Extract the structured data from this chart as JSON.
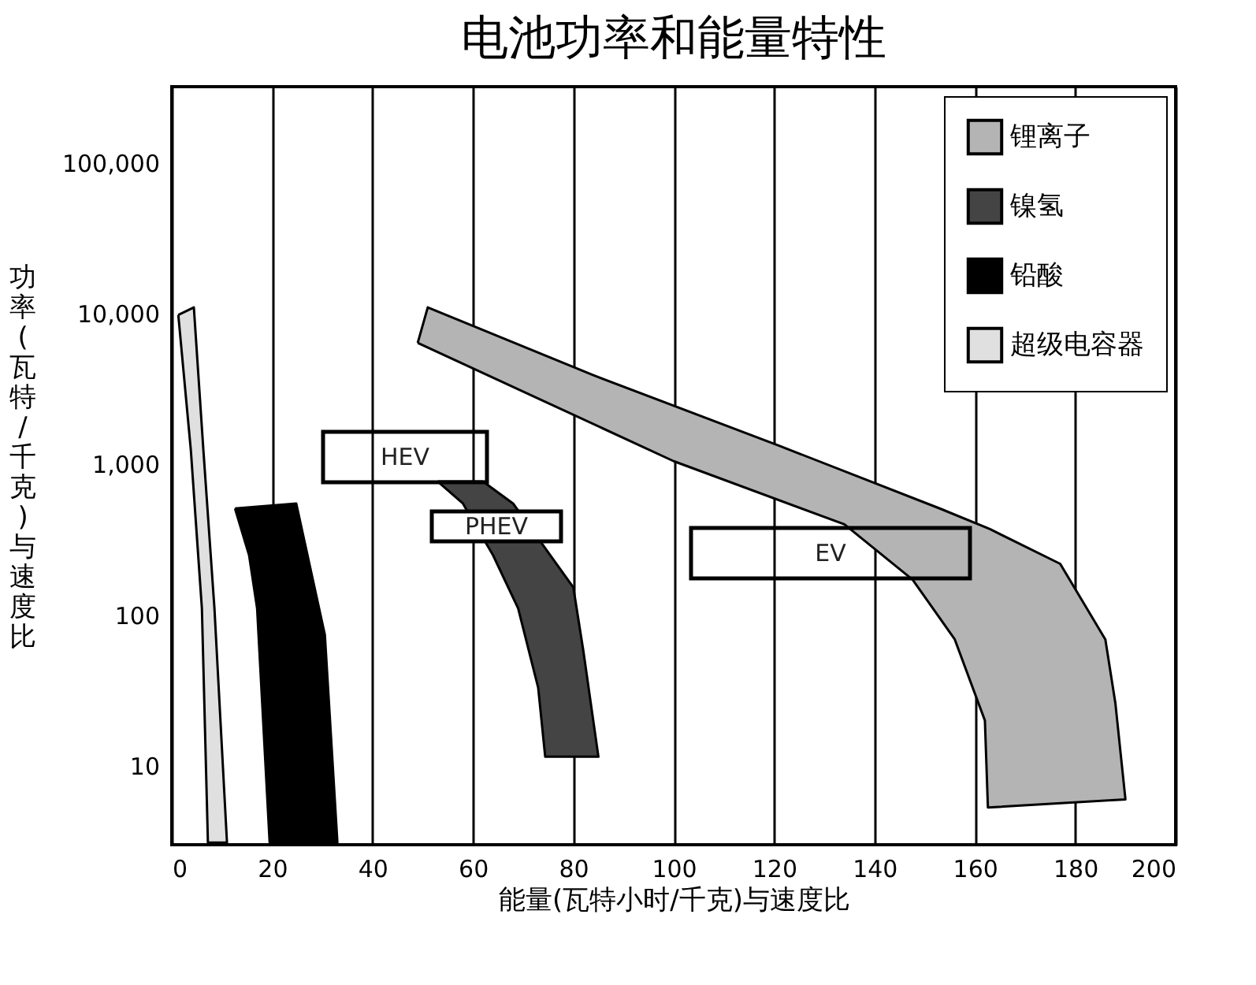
{
  "chart_data": {
    "type": "area",
    "title": "电池功率和能量特性",
    "xlabel": "能量(瓦特小时/千克)与速度比",
    "ylabel": "功率(瓦特/千克)与速度比",
    "log": "y",
    "grid": "x",
    "legend": "top right",
    "xlim": [
      0,
      200
    ],
    "xticks": [
      0,
      20,
      40,
      60,
      80,
      100,
      120,
      140,
      160,
      180,
      200
    ],
    "ylim": [
      3,
      320000
    ],
    "yticks": [
      {
        "value": 10,
        "label": "10"
      },
      {
        "value": 100,
        "label": "100"
      },
      {
        "value": 1000,
        "label": "1,000"
      },
      {
        "value": 10000,
        "label": "10,000"
      },
      {
        "value": 100000,
        "label": "100,000"
      }
    ],
    "series": [
      {
        "name": "锂离子",
        "color": "#b4b4b4",
        "x": [
          49,
          51,
          84,
          121,
          153,
          163,
          177,
          186,
          188,
          190,
          162.6,
          162,
          156,
          147.6,
          134,
          100,
          49
        ],
        "values": [
          6400,
          11000,
          3900,
          1330,
          510,
          372,
          219,
          69,
          26,
          6,
          5.3,
          20,
          69,
          172,
          400,
          1050,
          6400
        ]
      },
      {
        "name": "镍氢",
        "color": "#444444",
        "x": [
          53,
          62,
          68,
          80,
          82,
          85,
          74.4,
          73,
          69,
          64,
          58,
          53
        ],
        "values": [
          770,
          770,
          550,
          153,
          58,
          11.5,
          11.5,
          33,
          111,
          250,
          550,
          770
        ]
      },
      {
        "name": "铅酸",
        "color": "#000000",
        "x": [
          12.6,
          24.8,
          30.5,
          33,
          19.5,
          17,
          15.4,
          12.6
        ],
        "values": [
          510,
          550,
          74,
          3.1,
          3.1,
          111,
          250,
          510
        ]
      },
      {
        "name": "超级电容器",
        "color": "#e0e0e0",
        "x": [
          1.3,
          4.4,
          6.3,
          8.5,
          11,
          7.2,
          6,
          3.8,
          1.3
        ],
        "values": [
          9800,
          11000,
          1240,
          111,
          3.1,
          3.1,
          111,
          1240,
          9800
        ]
      }
    ],
    "annotations": [
      "HEV",
      "PHEV",
      "EV"
    ]
  }
}
